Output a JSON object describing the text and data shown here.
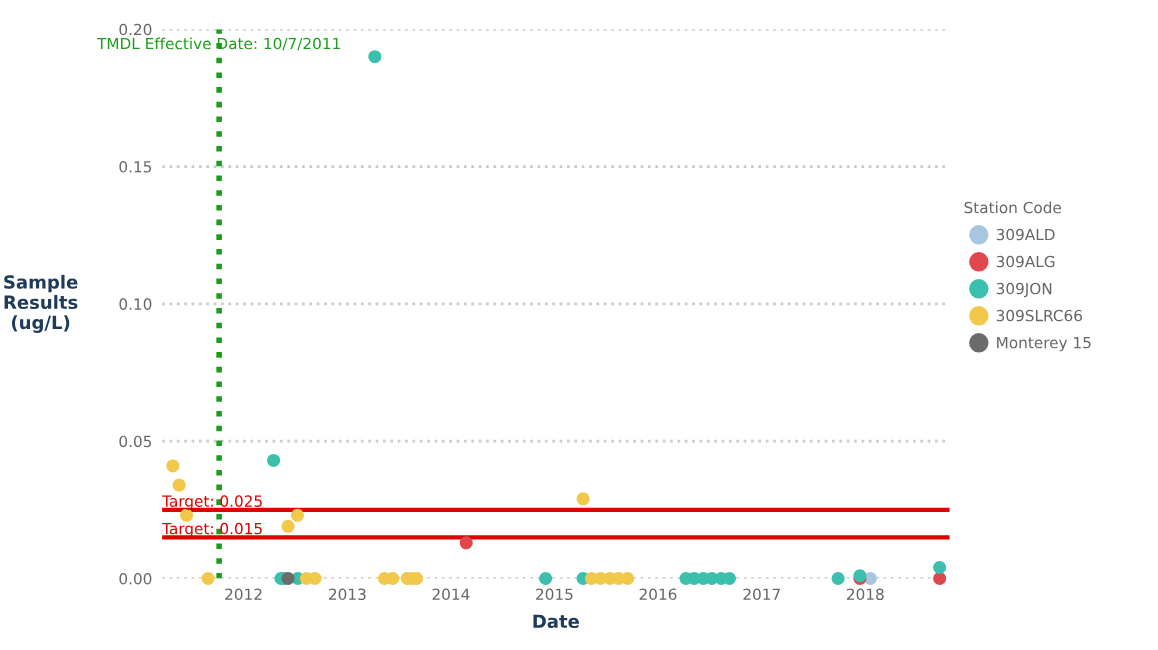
{
  "chart_data": {
    "type": "scatter",
    "xlabel": "Date",
    "ylabel": "Sample\nResults\n(ug/L)",
    "legend_title": "Station Code",
    "series": [
      {
        "name": "309ALD",
        "color": "#a7c7e0",
        "x": [
          "2018-01-19"
        ],
        "values": [
          0.0
        ]
      },
      {
        "name": "309ALG",
        "color": "#e0474c",
        "x": [
          "2014-02-24",
          "2017-12-13",
          "2018-09-20"
        ],
        "values": [
          0.013,
          0.0,
          0.0
        ]
      },
      {
        "name": "309JON",
        "color": "#3bbfae",
        "x": [
          "2012-04-16",
          "2012-05-12",
          "2012-05-23",
          "2012-07-10",
          "2013-04-08",
          "2014-12-01",
          "2015-04-12",
          "2016-04-09",
          "2016-05-08",
          "2016-06-09",
          "2016-07-09",
          "2016-08-11",
          "2016-09-09",
          "2017-09-27",
          "2017-12-13",
          "2018-09-20"
        ],
        "values": [
          0.043,
          0.0,
          0.0,
          0.0,
          0.19,
          0.0,
          0.0,
          0.0,
          0.0,
          0.0,
          0.0,
          0.0,
          0.0,
          0.0,
          0.001,
          0.004
        ]
      },
      {
        "name": "309SLRC66",
        "color": "#f2c84b",
        "x": [
          "2011-04-27",
          "2011-05-19",
          "2011-06-14",
          "2011-08-29",
          "2012-06-06",
          "2012-07-09",
          "2012-08-10",
          "2012-09-09",
          "2013-05-12",
          "2013-06-10",
          "2013-07-31",
          "2013-08-18",
          "2013-09-02",
          "2015-04-12",
          "2015-05-12",
          "2015-06-13",
          "2015-07-16",
          "2015-08-15",
          "2015-09-16"
        ],
        "values": [
          0.041,
          0.034,
          0.023,
          0.0,
          0.019,
          0.023,
          0.0,
          0.0,
          0.0,
          0.0,
          0.0,
          0.0,
          0.0,
          0.029,
          0.0,
          0.0,
          0.0,
          0.0,
          0.0
        ]
      },
      {
        "name": "Monterey 15",
        "color": "#6b6b6b",
        "x": [
          "2012-06-06"
        ],
        "values": [
          0.0
        ]
      }
    ],
    "xlim": [
      "2011-03-20",
      "2018-10-25"
    ],
    "xticks": [
      {
        "value": "2012-01-01",
        "label": "2012"
      },
      {
        "value": "2013-01-01",
        "label": "2013"
      },
      {
        "value": "2014-01-01",
        "label": "2014"
      },
      {
        "value": "2015-01-01",
        "label": "2015"
      },
      {
        "value": "2016-01-01",
        "label": "2016"
      },
      {
        "value": "2017-01-01",
        "label": "2017"
      },
      {
        "value": "2018-01-01",
        "label": "2018"
      }
    ],
    "ylim": [
      0,
      0.2
    ],
    "yticks": [
      {
        "value": 0,
        "label": "0.00"
      },
      {
        "value": 0.05,
        "label": "0.05"
      },
      {
        "value": 0.1,
        "label": "0.10"
      },
      {
        "value": 0.15,
        "label": "0.15"
      },
      {
        "value": 0.2,
        "label": "0.20"
      }
    ],
    "ref_lines": [
      {
        "axis": "y",
        "value": 0.025,
        "label": "Target: 0.025",
        "color": "#e00000",
        "line_style": "solid"
      },
      {
        "axis": "y",
        "value": 0.015,
        "label": "Target: 0.015",
        "color": "#e00000",
        "line_style": "solid"
      },
      {
        "axis": "x",
        "value": "2011-10-07",
        "label": "TMDL Effective Date: 10/7/2011",
        "color": "#1a9e1a",
        "line_style": "dotted"
      }
    ],
    "grid": "y",
    "legend": "right",
    "marker": "circle"
  }
}
